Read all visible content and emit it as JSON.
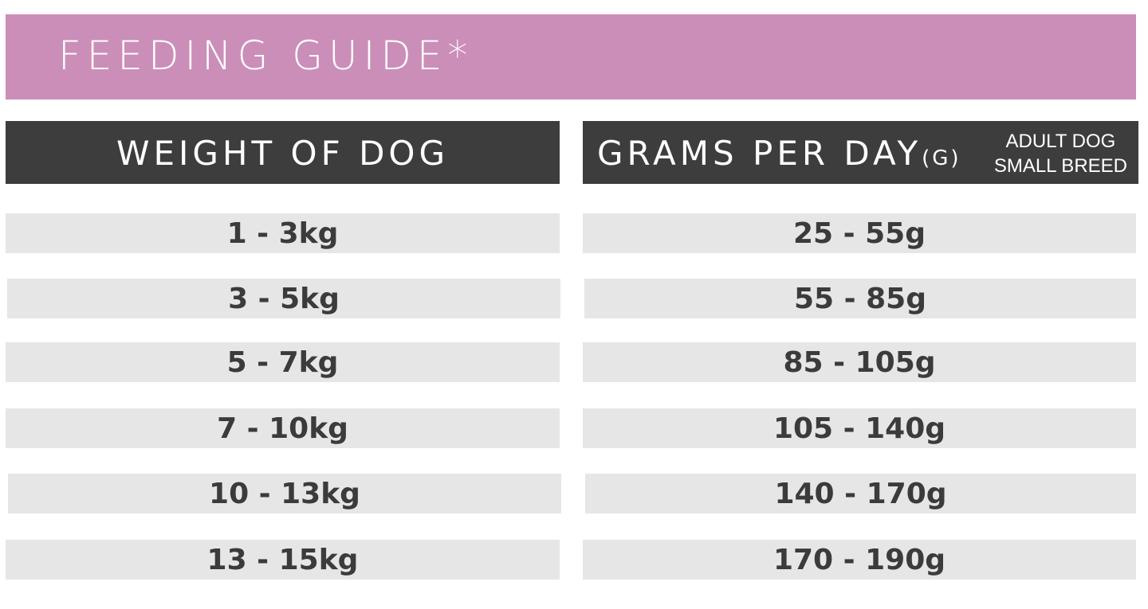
{
  "banner": {
    "title": "FEEDING GUIDE*"
  },
  "headers": {
    "weight": "WEIGHT OF DOG",
    "grams": "GRAMS PER DAY",
    "grams_unit": "(G)",
    "note_line1": "ADULT DOG",
    "note_line2": "SMALL BREED"
  },
  "rows": [
    {
      "weight": "1 - 3kg",
      "grams": "25 - 55g"
    },
    {
      "weight": "3 - 5kg",
      "grams": "55 - 85g"
    },
    {
      "weight": "5 - 7kg",
      "grams": "85 - 105g"
    },
    {
      "weight": "7 - 10kg",
      "grams": "105 - 140g"
    },
    {
      "weight": "10 - 13kg",
      "grams": "140 - 170g"
    },
    {
      "weight": "13 - 15kg",
      "grams": "170 - 190g"
    }
  ],
  "colors": {
    "banner": "#cb8eb9",
    "header": "#3d3d3d",
    "row": "#e6e6e6",
    "text": "#3b3b3b"
  }
}
